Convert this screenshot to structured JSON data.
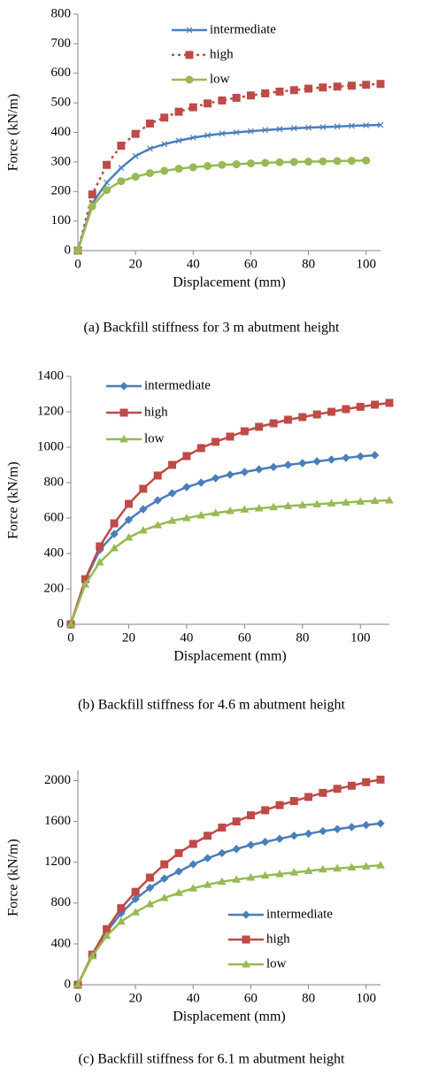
{
  "chart_data": [
    {
      "type": "line",
      "caption": "(a) Backfill stiffness for 3 m abutment height",
      "xlabel": "Displacement (mm)",
      "ylabel": "Force (kN/m)",
      "x": [
        0,
        5,
        10,
        15,
        20,
        25,
        30,
        35,
        40,
        45,
        50,
        55,
        60,
        65,
        70,
        75,
        80,
        85,
        90,
        95,
        100,
        105
      ],
      "xlim": [
        0,
        105
      ],
      "xticks": [
        0,
        20,
        40,
        60,
        80,
        100
      ],
      "ylim": [
        0,
        800
      ],
      "yticks": [
        0,
        100,
        200,
        300,
        400,
        500,
        600,
        700,
        800
      ],
      "legend": "top",
      "series": [
        {
          "name": "intermediate",
          "color": "#4a7ebb",
          "marker": "cross",
          "dash": "solid",
          "values": [
            0,
            160,
            230,
            280,
            320,
            345,
            360,
            372,
            382,
            390,
            396,
            400,
            404,
            408,
            411,
            414,
            416,
            418,
            420,
            422,
            424,
            425
          ]
        },
        {
          "name": "high",
          "color": "#be4b48",
          "marker": "square",
          "dash": "dotted",
          "values": [
            0,
            190,
            290,
            355,
            395,
            430,
            450,
            470,
            485,
            498,
            508,
            517,
            525,
            532,
            538,
            543,
            548,
            552,
            555,
            558,
            561,
            564
          ]
        },
        {
          "name": "low",
          "color": "#98b954",
          "marker": "circle",
          "dash": "solid",
          "values": [
            0,
            150,
            205,
            235,
            250,
            262,
            270,
            277,
            282,
            286,
            290,
            292,
            295,
            297,
            299,
            300,
            301,
            302,
            303,
            304,
            305,
            null
          ]
        }
      ]
    },
    {
      "type": "line",
      "caption": "(b) Backfill stiffness for 4.6 m abutment height",
      "xlabel": "Displacement (mm)",
      "ylabel": "Force (kN/m)",
      "x": [
        0,
        5,
        10,
        15,
        20,
        25,
        30,
        35,
        40,
        45,
        50,
        55,
        60,
        65,
        70,
        75,
        80,
        85,
        90,
        95,
        100,
        105,
        110
      ],
      "xlim": [
        0,
        110
      ],
      "xticks": [
        0,
        20,
        40,
        60,
        80,
        100
      ],
      "ylim": [
        0,
        1400
      ],
      "yticks": [
        0,
        200,
        400,
        600,
        800,
        1000,
        1200,
        1400
      ],
      "legend": "top-left",
      "series": [
        {
          "name": "intermediate",
          "color": "#4a7ebb",
          "marker": "diamond",
          "dash": "solid",
          "values": [
            0,
            250,
            420,
            510,
            590,
            650,
            700,
            740,
            775,
            800,
            825,
            845,
            860,
            875,
            888,
            900,
            910,
            920,
            930,
            940,
            948,
            955,
            null
          ]
        },
        {
          "name": "high",
          "color": "#be4b48",
          "marker": "square",
          "dash": "solid",
          "values": [
            0,
            255,
            440,
            570,
            680,
            765,
            840,
            900,
            950,
            995,
            1030,
            1060,
            1090,
            1115,
            1135,
            1155,
            1170,
            1185,
            1200,
            1215,
            1228,
            1240,
            1250
          ]
        },
        {
          "name": "low",
          "color": "#98b954",
          "marker": "triangle",
          "dash": "solid",
          "values": [
            0,
            225,
            350,
            430,
            490,
            530,
            560,
            585,
            600,
            615,
            628,
            640,
            648,
            655,
            662,
            668,
            673,
            678,
            683,
            688,
            693,
            697,
            700
          ]
        }
      ]
    },
    {
      "type": "line",
      "caption": "(c) Backfill stiffness for 6.1 m abutment height",
      "xlabel": "Displacement (mm)",
      "ylabel": "Force (kN/m)",
      "x": [
        0,
        5,
        10,
        15,
        20,
        25,
        30,
        35,
        40,
        45,
        50,
        55,
        60,
        65,
        70,
        75,
        80,
        85,
        90,
        95,
        100,
        105
      ],
      "xlim": [
        0,
        105
      ],
      "xticks": [
        0,
        20,
        40,
        60,
        80,
        100
      ],
      "ylim": [
        0,
        2100
      ],
      "yticks": [
        0,
        400,
        800,
        1200,
        1600,
        2000
      ],
      "legend": "bottom-right",
      "series": [
        {
          "name": "intermediate",
          "color": "#4a7ebb",
          "marker": "diamond",
          "dash": "solid",
          "values": [
            0,
            290,
            520,
            700,
            840,
            950,
            1040,
            1110,
            1180,
            1240,
            1290,
            1330,
            1370,
            1400,
            1430,
            1460,
            1480,
            1505,
            1525,
            1545,
            1565,
            1580
          ]
        },
        {
          "name": "high",
          "color": "#be4b48",
          "marker": "square",
          "dash": "solid",
          "values": [
            0,
            295,
            545,
            750,
            910,
            1050,
            1180,
            1290,
            1380,
            1460,
            1540,
            1600,
            1660,
            1710,
            1760,
            1800,
            1840,
            1880,
            1920,
            1950,
            1985,
            2010
          ]
        },
        {
          "name": "low",
          "color": "#98b954",
          "marker": "triangle",
          "dash": "solid",
          "values": [
            0,
            280,
            480,
            620,
            710,
            790,
            850,
            900,
            945,
            980,
            1010,
            1030,
            1050,
            1070,
            1085,
            1100,
            1115,
            1130,
            1140,
            1150,
            1160,
            1170
          ]
        }
      ]
    }
  ]
}
